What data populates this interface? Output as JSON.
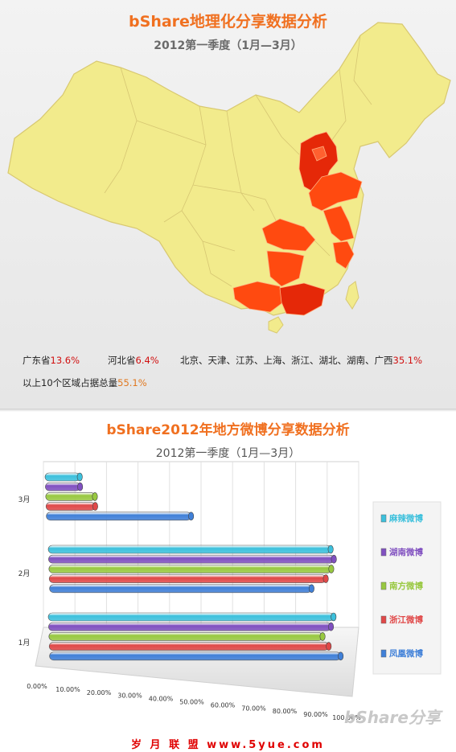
{
  "map_panel": {
    "title": "bShare地理化分享数据分析",
    "subtitle": "2012第一季度（1月—3月）",
    "stats": [
      {
        "label": "广东省",
        "value": "13.6%"
      },
      {
        "label": "河北省",
        "value": "6.4%"
      },
      {
        "label": "北京、天津、江苏、上海、浙江、湖北、湖南、广西",
        "value": "35.1%"
      }
    ],
    "summary_label": "以上10个区域占据总量",
    "summary_value": "55.1%",
    "colors": {
      "land": "#f2eb8c",
      "border": "#d8c870",
      "highlight": "#ff4a10",
      "dark": "#e52808"
    }
  },
  "chart_panel": {
    "title": "bShare2012年地方微博分享数据分析",
    "subtitle": "2012第一季度（1月—3月）",
    "brand_watermark": "bShare分享"
  },
  "chart_data": {
    "type": "bar",
    "orientation": "horizontal-3d",
    "categories": [
      "3月",
      "2月",
      "1月"
    ],
    "x_ticks": [
      "0.00%",
      "10.00%",
      "20.00%",
      "30.00%",
      "40.00%",
      "50.00%",
      "60.00%",
      "70.00%",
      "80.00%",
      "90.00%",
      "100.00%"
    ],
    "xlim": [
      0,
      100
    ],
    "series": [
      {
        "name": "麻辣微博",
        "color": "#3cc0dc",
        "values": [
          12,
          97,
          98
        ]
      },
      {
        "name": "湖南微博",
        "color": "#8050c0",
        "values": [
          12,
          98,
          97
        ]
      },
      {
        "name": "南方微博",
        "color": "#98c840",
        "values": [
          17,
          97,
          94
        ]
      },
      {
        "name": "浙江微博",
        "color": "#e04848",
        "values": [
          17,
          95,
          96
        ]
      },
      {
        "name": "凤凰微博",
        "color": "#4080d8",
        "values": [
          50,
          90,
          100
        ]
      }
    ],
    "legend_position": "right"
  },
  "footer": {
    "text": "岁 月 联 盟   www.5yue.com"
  }
}
